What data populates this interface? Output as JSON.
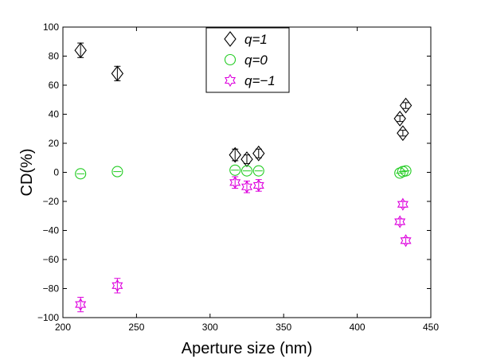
{
  "chart_data": {
    "type": "scatter",
    "xlabel": "Aperture size (nm)",
    "ylabel": "CD(%)",
    "xlim": [
      200,
      450
    ],
    "ylim": [
      -100,
      100
    ],
    "xticks": [
      200,
      250,
      300,
      350,
      400,
      450
    ],
    "yticks": [
      -100,
      -80,
      -60,
      -40,
      -20,
      0,
      20,
      40,
      60,
      80,
      100
    ],
    "grid": false,
    "legend_position": "top-center",
    "series": [
      {
        "name": "q=1",
        "marker": "diamond",
        "color": "#000000",
        "points": [
          {
            "x": 212,
            "y": 84,
            "err": 5
          },
          {
            "x": 237,
            "y": 68,
            "err": 5
          },
          {
            "x": 317,
            "y": 12,
            "err": 4
          },
          {
            "x": 325,
            "y": 9,
            "err": 3
          },
          {
            "x": 333,
            "y": 13,
            "err": 3
          },
          {
            "x": 429,
            "y": 37,
            "err": 2
          },
          {
            "x": 431,
            "y": 27,
            "err": 2
          },
          {
            "x": 433,
            "y": 46,
            "err": 2
          }
        ]
      },
      {
        "name": "q=0",
        "marker": "circle",
        "color": "#22cc22",
        "points": [
          {
            "x": 212,
            "y": -1,
            "err": 0
          },
          {
            "x": 237,
            "y": 0.5,
            "err": 0
          },
          {
            "x": 317,
            "y": 1.5,
            "err": 0
          },
          {
            "x": 325,
            "y": 1,
            "err": 0
          },
          {
            "x": 333,
            "y": 1,
            "err": 0
          },
          {
            "x": 429,
            "y": -0.5,
            "err": 0
          },
          {
            "x": 431,
            "y": 0.5,
            "err": 0
          },
          {
            "x": 433,
            "y": 1,
            "err": 0
          }
        ]
      },
      {
        "name": "q=−1",
        "marker": "hexagram",
        "color": "#dd00dd",
        "points": [
          {
            "x": 212,
            "y": -91,
            "err": 5
          },
          {
            "x": 237,
            "y": -78,
            "err": 5
          },
          {
            "x": 317,
            "y": -7,
            "err": 4
          },
          {
            "x": 325,
            "y": -10,
            "err": 4
          },
          {
            "x": 333,
            "y": -9,
            "err": 4
          },
          {
            "x": 429,
            "y": -34,
            "err": 2
          },
          {
            "x": 431,
            "y": -22,
            "err": 2
          },
          {
            "x": 433,
            "y": -47,
            "err": 2
          }
        ]
      }
    ]
  }
}
